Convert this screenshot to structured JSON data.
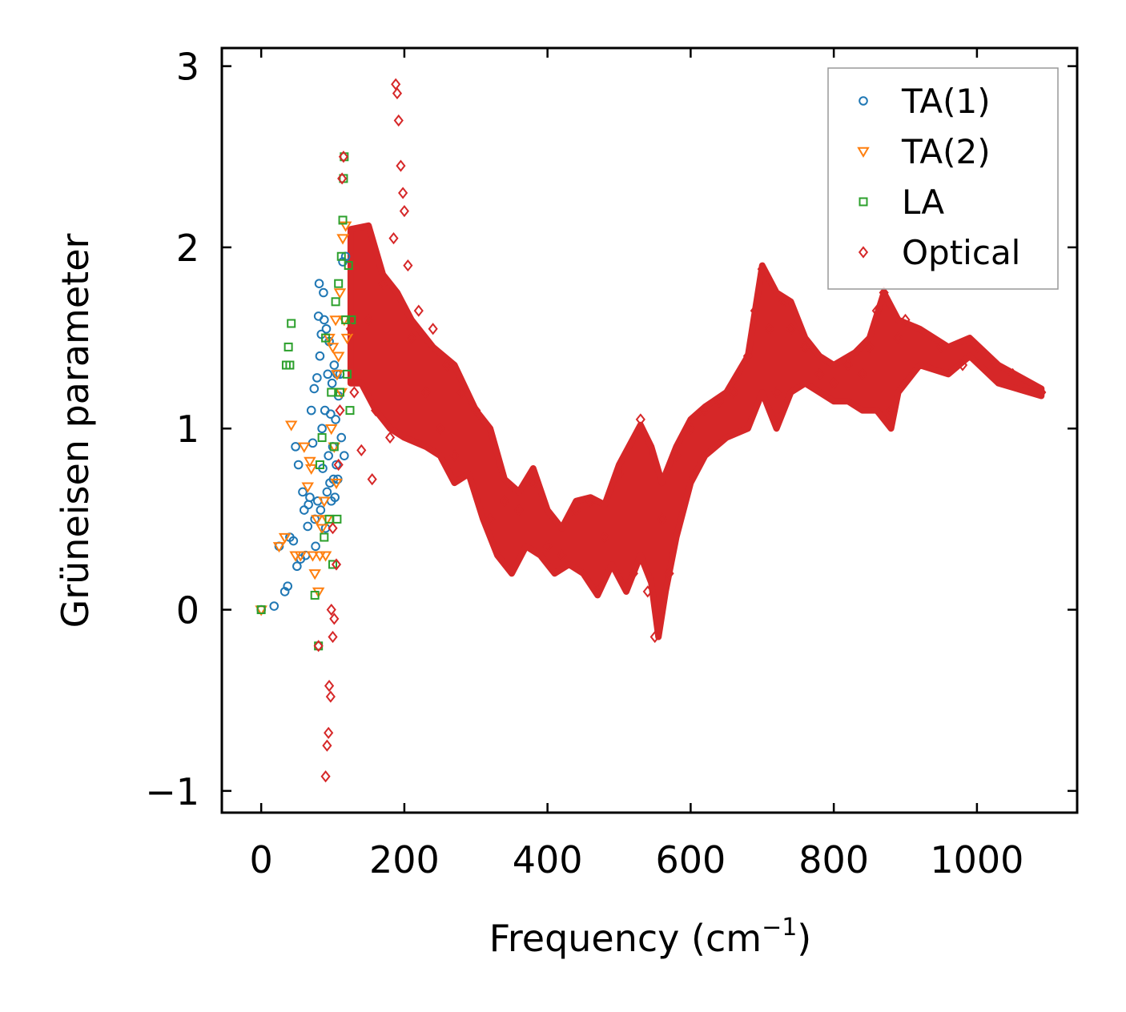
{
  "chart_data": {
    "type": "scatter",
    "xlabel": "Frequency (cm",
    "xlabel_sup": "−1",
    "xlabel_tail": ")",
    "ylabel": "Grüneisen parameter",
    "xlim": [
      -55,
      1140
    ],
    "ylim": [
      -1.12,
      3.1
    ],
    "xticks": [
      0,
      200,
      400,
      600,
      800,
      1000
    ],
    "xtick_labels": [
      "0",
      "200",
      "400",
      "600",
      "800",
      "1000"
    ],
    "yticks": [
      -1,
      0,
      1,
      2,
      3
    ],
    "ytick_labels": [
      "−1",
      "0",
      "1",
      "2",
      "3"
    ],
    "grid": false,
    "legend_position": "top-right",
    "series": [
      {
        "name": "TA(1)",
        "marker": "circle",
        "color": "#1f77b4",
        "points": [
          [
            0,
            0
          ],
          [
            18,
            0.02
          ],
          [
            25,
            0.35
          ],
          [
            33,
            0.1
          ],
          [
            37,
            0.13
          ],
          [
            40,
            0.4
          ],
          [
            45,
            0.38
          ],
          [
            48,
            0.9
          ],
          [
            50,
            0.24
          ],
          [
            52,
            0.8
          ],
          [
            55,
            0.28
          ],
          [
            58,
            0.65
          ],
          [
            60,
            0.55
          ],
          [
            62,
            0.3
          ],
          [
            65,
            0.46
          ],
          [
            66,
            0.58
          ],
          [
            68,
            0.62
          ],
          [
            70,
            1.1
          ],
          [
            72,
            0.92
          ],
          [
            74,
            1.22
          ],
          [
            75,
            0.5
          ],
          [
            76,
            0.35
          ],
          [
            78,
            1.28
          ],
          [
            79,
            0.6
          ],
          [
            80,
            1.62
          ],
          [
            81,
            1.8
          ],
          [
            82,
            1.4
          ],
          [
            83,
            0.55
          ],
          [
            84,
            1.52
          ],
          [
            85,
            1.0
          ],
          [
            86,
            0.78
          ],
          [
            87,
            1.75
          ],
          [
            88,
            1.6
          ],
          [
            89,
            1.1
          ],
          [
            90,
            0.45
          ],
          [
            91,
            1.55
          ],
          [
            92,
            0.65
          ],
          [
            93,
            1.3
          ],
          [
            94,
            0.85
          ],
          [
            95,
            1.48
          ],
          [
            96,
            0.7
          ],
          [
            97,
            1.08
          ],
          [
            98,
            0.6
          ],
          [
            99,
            1.25
          ],
          [
            100,
            0.9
          ],
          [
            101,
            0.72
          ],
          [
            102,
            1.35
          ],
          [
            103,
            0.62
          ],
          [
            104,
            1.05
          ],
          [
            105,
            0.8
          ],
          [
            106,
            1.3
          ],
          [
            107,
            0.72
          ],
          [
            108,
            1.18
          ],
          [
            110,
            1.3
          ],
          [
            112,
            0.95
          ],
          [
            114,
            1.92
          ],
          [
            116,
            0.85
          ],
          [
            118,
            1.95
          ]
        ]
      },
      {
        "name": "TA(2)",
        "marker": "triangle-down",
        "color": "#ff7f0e",
        "points": [
          [
            0,
            0
          ],
          [
            25,
            0.35
          ],
          [
            33,
            0.4
          ],
          [
            42,
            1.02
          ],
          [
            48,
            0.3
          ],
          [
            55,
            0.3
          ],
          [
            60,
            0.9
          ],
          [
            65,
            0.68
          ],
          [
            68,
            0.82
          ],
          [
            70,
            0.78
          ],
          [
            72,
            0.3
          ],
          [
            75,
            0.2
          ],
          [
            78,
            0.5
          ],
          [
            80,
            0.1
          ],
          [
            82,
            0.3
          ],
          [
            85,
            0.45
          ],
          [
            88,
            0.6
          ],
          [
            90,
            0.3
          ],
          [
            92,
            0.5
          ],
          [
            95,
            1.5
          ],
          [
            98,
            1.0
          ],
          [
            100,
            1.45
          ],
          [
            102,
            0.9
          ],
          [
            104,
            1.6
          ],
          [
            105,
            0.7
          ],
          [
            106,
            1.3
          ],
          [
            108,
            1.4
          ],
          [
            110,
            1.75
          ],
          [
            112,
            1.2
          ],
          [
            114,
            2.05
          ],
          [
            116,
            1.6
          ],
          [
            118,
            2.12
          ],
          [
            120,
            1.5
          ]
        ]
      },
      {
        "name": "LA",
        "marker": "square",
        "color": "#2ca02c",
        "points": [
          [
            0,
            0
          ],
          [
            35,
            1.35
          ],
          [
            38,
            1.45
          ],
          [
            40,
            1.35
          ],
          [
            42,
            1.58
          ],
          [
            75,
            0.08
          ],
          [
            80,
            -0.2
          ],
          [
            82,
            0.8
          ],
          [
            85,
            0.95
          ],
          [
            88,
            0.4
          ],
          [
            90,
            1.5
          ],
          [
            95,
            0.5
          ],
          [
            98,
            1.2
          ],
          [
            100,
            0.25
          ],
          [
            102,
            0.9
          ],
          [
            104,
            1.7
          ],
          [
            106,
            0.5
          ],
          [
            108,
            1.8
          ],
          [
            110,
            1.2
          ],
          [
            112,
            1.95
          ],
          [
            114,
            2.15
          ],
          [
            115,
            2.38
          ],
          [
            116,
            2.5
          ],
          [
            118,
            1.6
          ],
          [
            120,
            1.3
          ],
          [
            122,
            1.9
          ],
          [
            124,
            1.1
          ],
          [
            126,
            1.6
          ]
        ]
      },
      {
        "name": "Optical",
        "marker": "diamond",
        "color": "#d62728",
        "points": [
          [
            80,
            -0.2
          ],
          [
            90,
            -0.92
          ],
          [
            92,
            -0.75
          ],
          [
            94,
            -0.68
          ],
          [
            95,
            -0.42
          ],
          [
            97,
            -0.48
          ],
          [
            98,
            0.0
          ],
          [
            100,
            -0.15
          ],
          [
            100,
            0.45
          ],
          [
            102,
            -0.05
          ],
          [
            105,
            0.25
          ],
          [
            108,
            0.8
          ],
          [
            110,
            1.1
          ],
          [
            113,
            2.38
          ],
          [
            115,
            2.5
          ],
          [
            125,
            1.55
          ],
          [
            130,
            1.2
          ],
          [
            140,
            0.88
          ],
          [
            150,
            1.6
          ],
          [
            155,
            0.72
          ],
          [
            160,
            1.1
          ],
          [
            170,
            1.8
          ],
          [
            180,
            0.95
          ],
          [
            185,
            2.05
          ],
          [
            188,
            2.9
          ],
          [
            190,
            2.85
          ],
          [
            192,
            2.7
          ],
          [
            195,
            2.45
          ],
          [
            198,
            2.3
          ],
          [
            200,
            2.2
          ],
          [
            205,
            1.9
          ],
          [
            210,
            1.5
          ],
          [
            220,
            1.65
          ],
          [
            230,
            1.2
          ],
          [
            240,
            1.55
          ],
          [
            250,
            1.0
          ],
          [
            260,
            1.35
          ],
          [
            270,
            0.85
          ],
          [
            280,
            1.2
          ],
          [
            300,
            1.1
          ],
          [
            320,
            0.5
          ],
          [
            340,
            0.6
          ],
          [
            360,
            0.55
          ],
          [
            380,
            0.7
          ],
          [
            400,
            0.35
          ],
          [
            420,
            0.3
          ],
          [
            440,
            0.55
          ],
          [
            460,
            0.6
          ],
          [
            470,
            0.1
          ],
          [
            480,
            0.4
          ],
          [
            500,
            0.75
          ],
          [
            520,
            0.2
          ],
          [
            530,
            1.05
          ],
          [
            540,
            0.1
          ],
          [
            550,
            -0.15
          ],
          [
            560,
            0.5
          ],
          [
            570,
            0.2
          ],
          [
            580,
            0.85
          ],
          [
            600,
            1.0
          ],
          [
            620,
            1.1
          ],
          [
            640,
            1.15
          ],
          [
            660,
            1.2
          ],
          [
            680,
            1.4
          ],
          [
            690,
            1.65
          ],
          [
            700,
            1.88
          ],
          [
            710,
            1.55
          ],
          [
            720,
            1.2
          ],
          [
            730,
            1.7
          ],
          [
            740,
            1.55
          ],
          [
            760,
            1.45
          ],
          [
            780,
            1.3
          ],
          [
            800,
            1.25
          ],
          [
            820,
            1.35
          ],
          [
            840,
            1.3
          ],
          [
            850,
            1.45
          ],
          [
            860,
            1.65
          ],
          [
            870,
            1.75
          ],
          [
            880,
            1.1
          ],
          [
            890,
            1.5
          ],
          [
            900,
            1.6
          ],
          [
            950,
            1.45
          ],
          [
            980,
            1.35
          ],
          [
            1000,
            1.45
          ],
          [
            1050,
            1.3
          ],
          [
            1090,
            1.2
          ]
        ]
      }
    ]
  }
}
